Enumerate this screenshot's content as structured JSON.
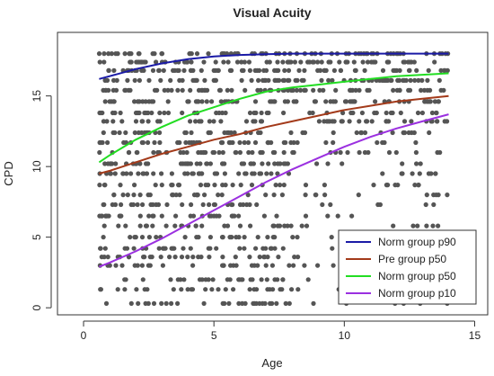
{
  "chart_data": {
    "type": "scatter",
    "title": "Visual Acuity",
    "xlabel": "Age",
    "ylabel": "CPD",
    "xlim": [
      -1,
      15.5
    ],
    "ylim": [
      -0.5,
      19.5
    ],
    "x_ticks": [
      "0",
      "5",
      "10",
      "15"
    ],
    "y_ticks": [
      "0",
      "5",
      "10",
      "15"
    ],
    "x_tick_values": [
      0,
      5,
      10,
      15
    ],
    "y_tick_values": [
      0,
      5,
      10,
      15
    ],
    "grid": false,
    "legend_position": "bottom-right",
    "point_color": "#555555",
    "scatter_description": "dense grey points at discrete CPD levels (0.3 to 18) for ages 0.5 to 14",
    "scatter_levels": [
      0.3,
      1.3,
      2.0,
      3.0,
      3.6,
      4.2,
      5.0,
      5.8,
      6.5,
      7.3,
      8.0,
      8.7,
      9.5,
      10.2,
      11.0,
      11.7,
      12.4,
      13.2,
      13.8,
      14.6,
      15.4,
      16.1,
      16.8,
      17.4,
      18.0
    ],
    "series": [
      {
        "name": "Norm group p90",
        "color": "#1a1aa6",
        "x": [
          0.6,
          1,
          2,
          3,
          4,
          5,
          6,
          7,
          8,
          9,
          10,
          11,
          12,
          13,
          14
        ],
        "y": [
          16.2,
          16.4,
          16.9,
          17.3,
          17.6,
          17.8,
          17.9,
          17.95,
          18.0,
          18.0,
          18.0,
          18.0,
          18.0,
          18.0,
          18.0
        ]
      },
      {
        "name": "Pre group p50",
        "color": "#a33a1a",
        "x": [
          0.6,
          1,
          2,
          3,
          4,
          5,
          6,
          7,
          8,
          9,
          10,
          11,
          12,
          13,
          14
        ],
        "y": [
          9.5,
          9.7,
          10.3,
          10.9,
          11.4,
          11.9,
          12.3,
          12.8,
          13.2,
          13.6,
          14.0,
          14.3,
          14.6,
          14.8,
          15.0
        ]
      },
      {
        "name": "Norm group p50",
        "color": "#22dd22",
        "x": [
          0.6,
          1,
          2,
          3,
          4,
          5,
          6,
          7,
          8,
          9,
          10,
          11,
          12,
          13,
          14
        ],
        "y": [
          10.3,
          10.8,
          11.9,
          12.8,
          13.6,
          14.2,
          14.8,
          15.3,
          15.6,
          15.8,
          16.0,
          16.2,
          16.4,
          16.5,
          16.6
        ]
      },
      {
        "name": "Norm group p10",
        "color": "#9b30e0",
        "x": [
          0.6,
          1,
          2,
          3,
          4,
          5,
          6,
          7,
          8,
          9,
          10,
          11,
          12,
          13,
          14
        ],
        "y": [
          2.9,
          3.2,
          4.0,
          4.9,
          5.9,
          6.9,
          7.9,
          8.9,
          9.8,
          10.6,
          11.4,
          12.1,
          12.7,
          13.2,
          13.7
        ]
      }
    ]
  }
}
